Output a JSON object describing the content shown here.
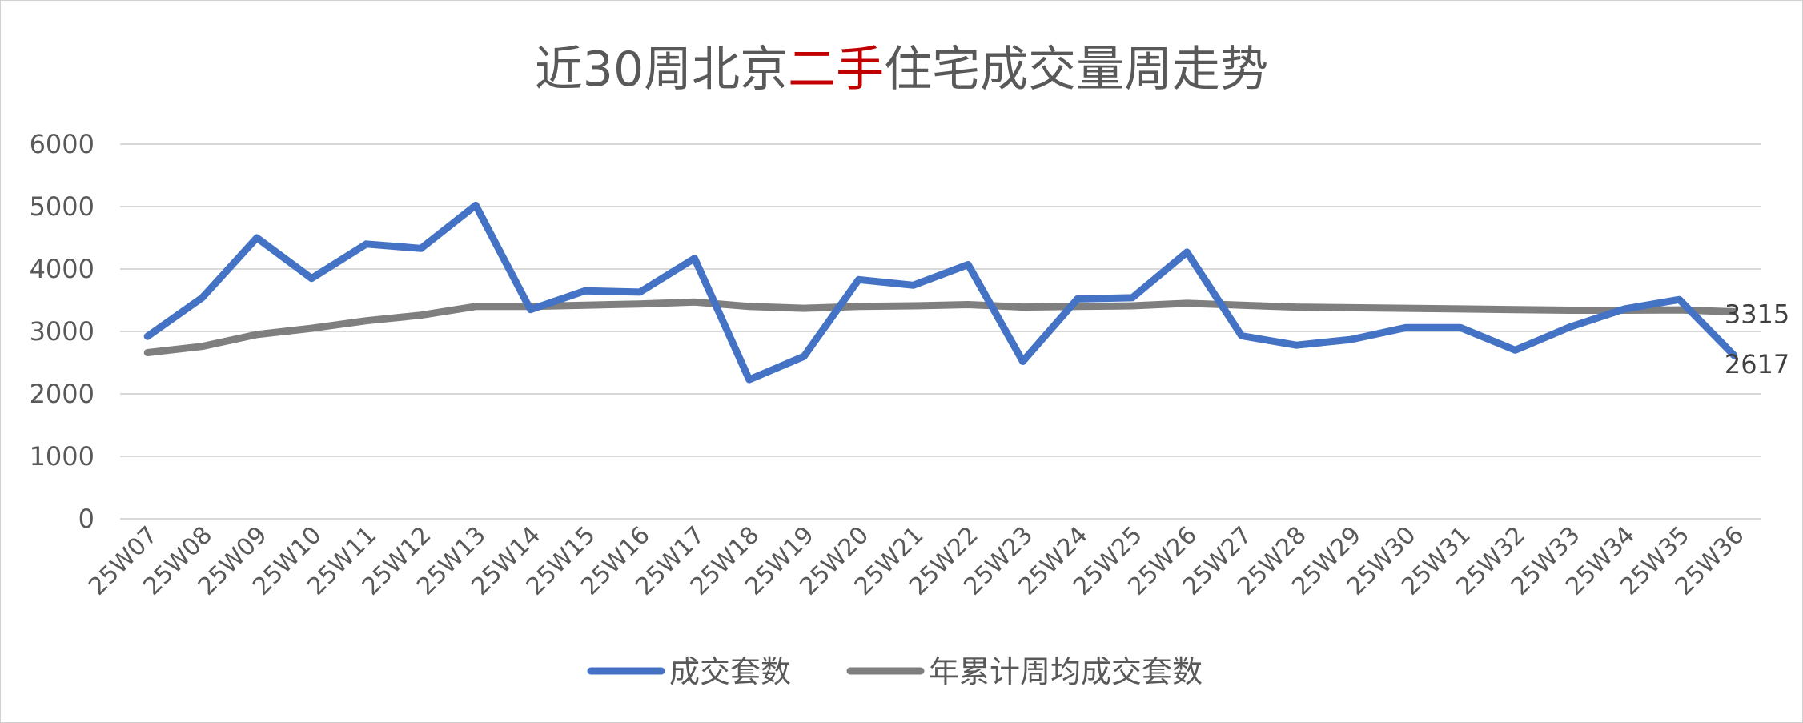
{
  "chart_data": {
    "type": "line",
    "title_parts": [
      "近30周北京",
      "二手",
      "住宅成交量周走势"
    ],
    "highlight_color": "#c00000",
    "categories": [
      "25W07",
      "25W08",
      "25W09",
      "25W10",
      "25W11",
      "25W12",
      "25W13",
      "25W14",
      "25W15",
      "25W16",
      "25W17",
      "25W18",
      "25W19",
      "25W20",
      "25W21",
      "25W22",
      "25W23",
      "25W24",
      "25W25",
      "25W26",
      "25W27",
      "25W28",
      "25W29",
      "25W30",
      "25W31",
      "25W32",
      "25W33",
      "25W34",
      "25W35",
      "25W36"
    ],
    "ylim": [
      0,
      6000
    ],
    "yticks": [
      0,
      1000,
      2000,
      3000,
      4000,
      5000,
      6000
    ],
    "ytick_labels": [
      "0",
      "1000",
      "2000",
      "3000",
      "4000",
      "5000",
      "6000"
    ],
    "grid": true,
    "legend_position": "bottom",
    "series": [
      {
        "name": "成交套数",
        "color": "#4472c4",
        "values": [
          2920,
          3540,
          4500,
          3850,
          4400,
          4330,
          5020,
          3350,
          3650,
          3630,
          4170,
          2230,
          2600,
          3830,
          3740,
          4070,
          2520,
          3520,
          3540,
          4270,
          2930,
          2780,
          2870,
          3060,
          3060,
          2700,
          3070,
          3360,
          3510,
          2617
        ],
        "last_label": "2617"
      },
      {
        "name": "年累计周均成交套数",
        "color": "#7f7f7f",
        "values": [
          2660,
          2760,
          2950,
          3050,
          3170,
          3260,
          3400,
          3400,
          3420,
          3440,
          3470,
          3400,
          3370,
          3400,
          3410,
          3430,
          3390,
          3400,
          3410,
          3450,
          3420,
          3390,
          3380,
          3370,
          3360,
          3350,
          3340,
          3340,
          3345,
          3315
        ],
        "last_label": "3315"
      }
    ]
  }
}
